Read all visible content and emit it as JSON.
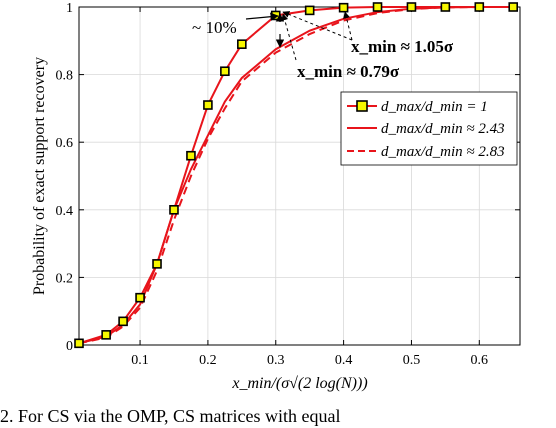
{
  "chart_data": {
    "type": "line",
    "xlabel": "x_min/(σ√(2 log(N)))",
    "ylabel": "Probability of exact support recovery",
    "xlim": [
      0.01,
      0.66
    ],
    "ylim": [
      0,
      1
    ],
    "xticks": [
      0.1,
      0.2,
      0.3,
      0.4,
      0.5,
      0.6
    ],
    "yticks": [
      0,
      0.2,
      0.4,
      0.6,
      0.8,
      1
    ],
    "xtick_labels": [
      "0.1",
      "0.2",
      "0.3",
      "0.4",
      "0.5",
      "0.6"
    ],
    "ytick_labels": [
      "0",
      "0.2",
      "0.4",
      "0.6",
      "0.8",
      "1"
    ],
    "grid": true,
    "legend_position": "right, upper middle",
    "series": [
      {
        "name": "d_max/d_min = 1",
        "color": "#e8141b",
        "line_style": "solid",
        "marker": "square",
        "marker_fill": "#f7f700",
        "x": [
          0.01,
          0.05,
          0.075,
          0.1,
          0.125,
          0.15,
          0.175,
          0.2,
          0.225,
          0.25,
          0.3,
          0.35,
          0.4,
          0.45,
          0.5,
          0.55,
          0.6,
          0.65
        ],
        "y": [
          0.005,
          0.03,
          0.07,
          0.14,
          0.24,
          0.4,
          0.56,
          0.71,
          0.81,
          0.89,
          0.975,
          0.99,
          0.998,
          1.0,
          1.0,
          1.0,
          1.0,
          1.0
        ]
      },
      {
        "name": "d_max/d_min ≈ 2.43",
        "color": "#e8141b",
        "line_style": "solid",
        "marker": "none",
        "x": [
          0.01,
          0.05,
          0.075,
          0.1,
          0.125,
          0.15,
          0.175,
          0.2,
          0.225,
          0.25,
          0.3,
          0.35,
          0.4,
          0.45,
          0.5,
          0.55,
          0.6,
          0.65
        ],
        "y": [
          0.005,
          0.025,
          0.06,
          0.12,
          0.24,
          0.4,
          0.52,
          0.62,
          0.72,
          0.79,
          0.875,
          0.93,
          0.965,
          0.985,
          0.995,
          0.999,
          1.0,
          1.0
        ]
      },
      {
        "name": "d_max/d_min ≈ 2.83",
        "color": "#e8141b",
        "line_style": "dashed",
        "marker": "none",
        "x": [
          0.01,
          0.05,
          0.075,
          0.1,
          0.125,
          0.15,
          0.175,
          0.2,
          0.225,
          0.25,
          0.3,
          0.35,
          0.4,
          0.45,
          0.5,
          0.55,
          0.6,
          0.65
        ],
        "y": [
          0.005,
          0.022,
          0.055,
          0.11,
          0.22,
          0.37,
          0.5,
          0.61,
          0.7,
          0.78,
          0.865,
          0.92,
          0.96,
          0.982,
          0.994,
          0.999,
          1.0,
          1.0
        ]
      }
    ],
    "annotations": [
      {
        "text": "~ 10%"
      },
      {
        "text": "x_min ≈ 1.05σ"
      },
      {
        "text": "x_min ≈ 0.79σ"
      }
    ]
  },
  "caption": "2.   For CS via the OMP, CS matrices with equal"
}
